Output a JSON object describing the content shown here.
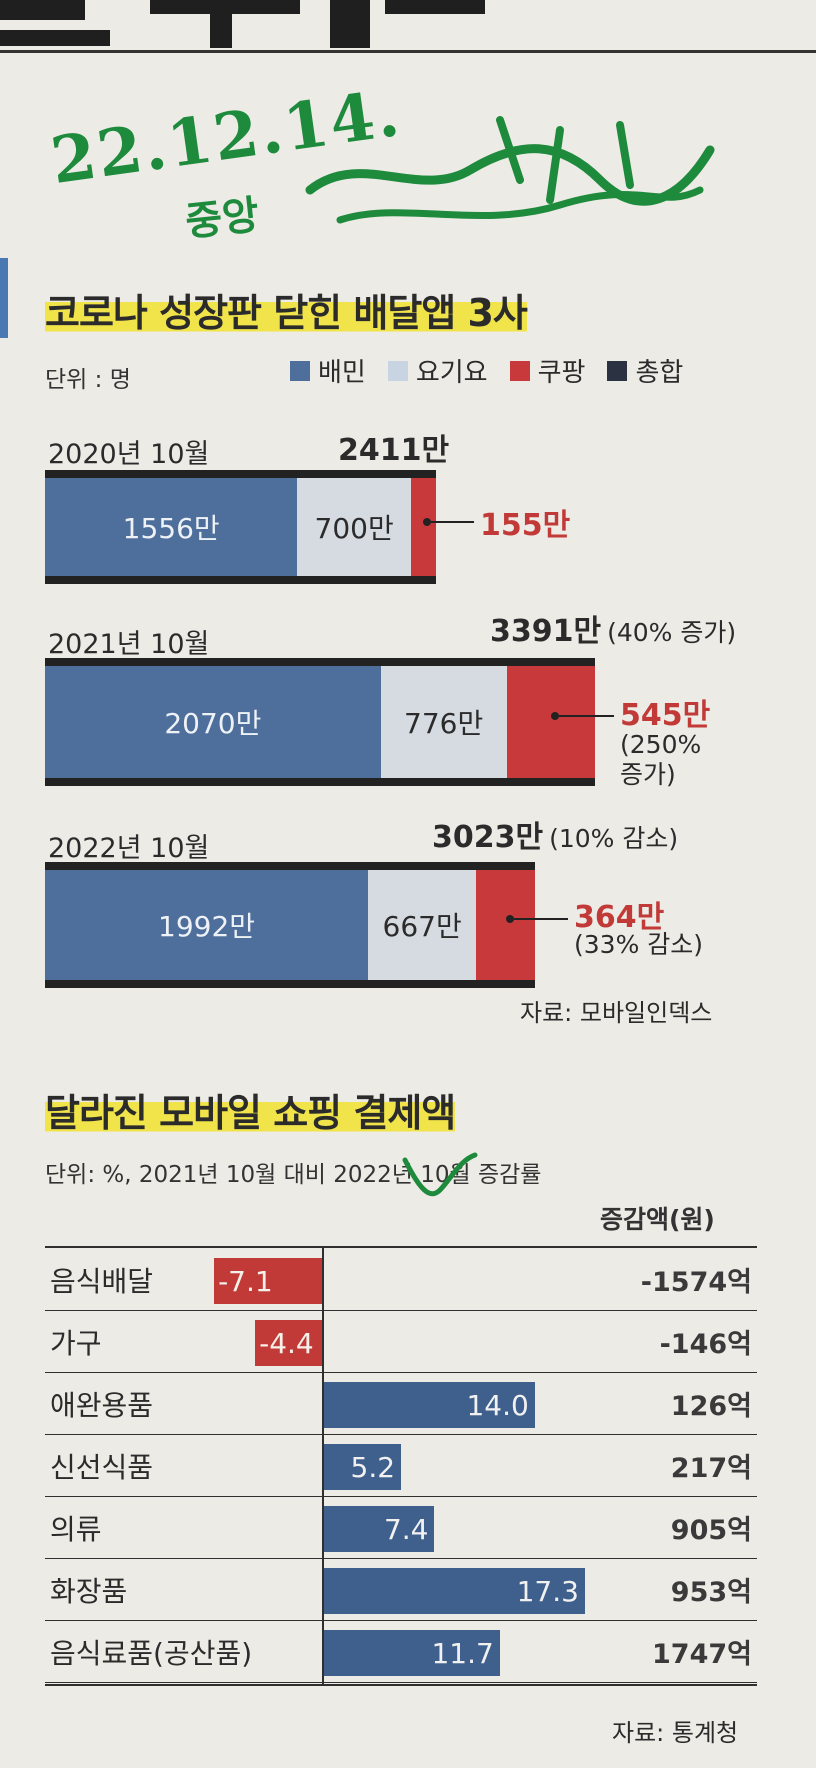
{
  "colors": {
    "baemin": "#4e6e9c",
    "yogiyo": "#d6dbe2",
    "coupang": "#c8393b",
    "total": "#2b3342",
    "positive_bar": "#3f5f8c",
    "negative_bar": "#c23a37",
    "handwriting": "#1e8a3c",
    "highlight": "#f0e44a"
  },
  "handwritten_note": {
    "line1": "22.12.14.",
    "line2": "중앙"
  },
  "chart_data": [
    {
      "type": "bar",
      "stacked": true,
      "orientation": "horizontal",
      "title": "코로나 성장판 닫힌 배달앱 3사",
      "unit_label": "단위 : 명",
      "legend": [
        "배민",
        "요기요",
        "쿠팡",
        "총합"
      ],
      "categories": [
        "2020년 10월",
        "2021년 10월",
        "2022년 10월"
      ],
      "series": [
        {
          "name": "배민",
          "values": [
            1556,
            2070,
            1992
          ],
          "labels": [
            "1556만",
            "2070만",
            "1992만"
          ]
        },
        {
          "name": "요기요",
          "values": [
            700,
            776,
            667
          ],
          "labels": [
            "700만",
            "776만",
            "667만"
          ]
        },
        {
          "name": "쿠팡",
          "values": [
            155,
            545,
            364
          ],
          "labels": [
            "155만",
            "545만",
            "364만"
          ]
        }
      ],
      "totals": [
        {
          "label": "2411만",
          "note": ""
        },
        {
          "label": "3391만",
          "note": "(40% 증가)"
        },
        {
          "label": "3023만",
          "note": "(10% 감소)"
        }
      ],
      "coupang_notes": [
        "",
        "(250% 증가)",
        "(33% 감소)"
      ],
      "xlim": [
        0,
        3391
      ],
      "source": "자료: 모바일인덱스"
    },
    {
      "type": "bar",
      "orientation": "horizontal",
      "title": "달라진 모바일 쇼핑 결제액",
      "unit_label": "단위: %,  2021년 10월 대비 2022년 10월 증감률",
      "amount_header": "증감액(원)",
      "categories": [
        "음식배달",
        "가구",
        "애완용품",
        "신선식품",
        "의류",
        "화장품",
        "음식료품(공산품)"
      ],
      "values": [
        -7.1,
        -4.4,
        14.0,
        5.2,
        7.4,
        17.3,
        11.7
      ],
      "value_labels": [
        "-7.1",
        "-4.4",
        "14.0",
        "5.2",
        "7.4",
        "17.3",
        "11.7"
      ],
      "amounts": [
        "-1574억",
        "-146억",
        "126억",
        "217억",
        "905억",
        "953억",
        "1747억"
      ],
      "xlim": [
        -7.1,
        17.3
      ],
      "source": "자료: 통계청"
    }
  ]
}
